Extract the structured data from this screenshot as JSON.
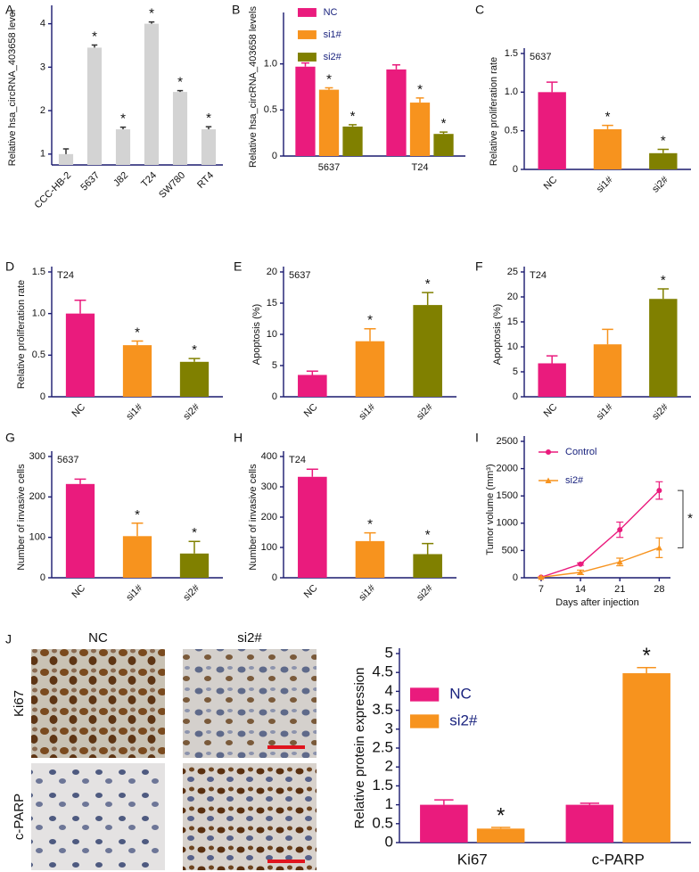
{
  "chart_data": [
    {
      "panel": "A",
      "type": "bar",
      "y_label": "Relative hsa_circRNA_403658 level",
      "categories": [
        "CCC-HB-2",
        "5637",
        "J82",
        "T24",
        "SW780",
        "RT4"
      ],
      "values": [
        1.0,
        3.45,
        1.57,
        4.0,
        2.43,
        1.57
      ],
      "errors": [
        0.12,
        0.06,
        0.05,
        0.04,
        0.03,
        0.06
      ],
      "significance": [
        null,
        "*",
        "*",
        "*",
        "*",
        "*"
      ],
      "color": "#d3d3d3",
      "ylim": [
        0.75,
        4.3
      ],
      "yticks": [
        1,
        2,
        3,
        4
      ]
    },
    {
      "panel": "B",
      "type": "bar",
      "y_label": "Relative hsa_circRNA_403658 levels",
      "categories": [
        "5637",
        "T24"
      ],
      "series": [
        {
          "name": "NC",
          "color": "#ea1b7d",
          "values": [
            0.97,
            0.94
          ],
          "errors": [
            0.04,
            0.05
          ],
          "significance": [
            null,
            null
          ]
        },
        {
          "name": "si1#",
          "color": "#f7931e",
          "values": [
            0.72,
            0.58
          ],
          "errors": [
            0.02,
            0.05
          ],
          "significance": [
            "*",
            "*"
          ]
        },
        {
          "name": "si2#",
          "color": "#808000",
          "values": [
            0.32,
            0.24
          ],
          "errors": [
            0.02,
            0.02
          ],
          "significance": [
            "*",
            "*"
          ]
        }
      ],
      "ylim": [
        0,
        1.5
      ],
      "yticks": [
        0,
        0.5,
        {
          "value": 1,
          "label": "1.0"
        }
      ]
    },
    {
      "panel": "C",
      "type": "bar",
      "subtitle": "5637",
      "y_label": "Relative proliferation rate",
      "categories": [
        "NC",
        "si1#",
        "si2#"
      ],
      "values": [
        1.0,
        0.52,
        0.21
      ],
      "errors": [
        0.13,
        0.05,
        0.05
      ],
      "significance": [
        null,
        "*",
        "*"
      ],
      "colors": [
        "#ea1b7d",
        "#f7931e",
        "#808000"
      ],
      "ylim": [
        0,
        1.5
      ],
      "yticks": [
        0,
        0.5,
        {
          "value": 1,
          "label": "1.0"
        },
        1.5
      ]
    },
    {
      "panel": "D",
      "type": "bar",
      "subtitle": "T24",
      "y_label": "Relative proliferation rate",
      "categories": [
        "NC",
        "si1#",
        "si2#"
      ],
      "values": [
        1.0,
        0.62,
        0.42
      ],
      "errors": [
        0.16,
        0.05,
        0.04
      ],
      "significance": [
        null,
        "*",
        "*"
      ],
      "colors": [
        "#ea1b7d",
        "#f7931e",
        "#808000"
      ],
      "ylim": [
        0,
        1.5
      ],
      "yticks": [
        0,
        0.5,
        {
          "value": 1,
          "label": "1.0"
        },
        1.5
      ]
    },
    {
      "panel": "E",
      "type": "bar",
      "subtitle": "5637",
      "y_label": "Apoptosis (%)",
      "categories": [
        "NC",
        "si1#",
        "si2#"
      ],
      "values": [
        3.5,
        8.9,
        14.7
      ],
      "errors": [
        0.6,
        2.0,
        2.0
      ],
      "significance": [
        null,
        "*",
        "*"
      ],
      "colors": [
        "#ea1b7d",
        "#f7931e",
        "#808000"
      ],
      "ylim": [
        0,
        20
      ],
      "yticks": [
        0,
        5,
        10,
        15,
        20
      ]
    },
    {
      "panel": "F",
      "type": "bar",
      "subtitle": "T24",
      "y_label": "Apoptosis (%)",
      "categories": [
        "NC",
        "si1#",
        "si2#"
      ],
      "values": [
        6.7,
        10.5,
        19.6
      ],
      "errors": [
        1.5,
        3.0,
        2.0
      ],
      "significance": [
        null,
        null,
        "*"
      ],
      "colors": [
        "#ea1b7d",
        "#f7931e",
        "#808000"
      ],
      "ylim": [
        0,
        25
      ],
      "yticks": [
        0,
        5,
        10,
        15,
        20,
        25
      ]
    },
    {
      "panel": "G",
      "type": "bar",
      "subtitle": "5637",
      "y_label": "Number of invasive cells",
      "categories": [
        "NC",
        "si1#",
        "si2#"
      ],
      "values": [
        232,
        103,
        60
      ],
      "errors": [
        12,
        32,
        30
      ],
      "significance": [
        null,
        "*",
        "*"
      ],
      "colors": [
        "#ea1b7d",
        "#f7931e",
        "#808000"
      ],
      "ylim": [
        0,
        300
      ],
      "yticks": [
        0,
        100,
        200,
        300
      ]
    },
    {
      "panel": "H",
      "type": "bar",
      "subtitle": "T24",
      "y_label": "Number of invasive cells",
      "categories": [
        "NC",
        "si1#",
        "si2#"
      ],
      "values": [
        333,
        121,
        78
      ],
      "errors": [
        25,
        27,
        35
      ],
      "significance": [
        null,
        "*",
        "*"
      ],
      "colors": [
        "#ea1b7d",
        "#f7931e",
        "#808000"
      ],
      "ylim": [
        0,
        400
      ],
      "yticks": [
        0,
        100,
        200,
        300,
        400
      ]
    },
    {
      "panel": "I",
      "type": "line",
      "y_label": "Tumor volume (mm³)",
      "x_label": "Days after injection",
      "x": [
        7,
        14,
        21,
        28
      ],
      "series": [
        {
          "name": "Control",
          "color": "#ea1b7d",
          "marker": "circle",
          "values": [
            10,
            250,
            880,
            1600
          ],
          "errors": [
            5,
            20,
            140,
            160
          ]
        },
        {
          "name": "si2#",
          "color": "#f7931e",
          "marker": "triangle",
          "values": [
            10,
            100,
            290,
            550
          ],
          "errors": [
            5,
            40,
            70,
            180
          ]
        }
      ],
      "significance": "*",
      "xlim": [
        4,
        30
      ],
      "xticks": [
        7,
        14,
        21,
        28
      ],
      "ylim": [
        0,
        2500
      ],
      "yticks": [
        0,
        500,
        1000,
        1500,
        2000,
        2500
      ]
    },
    {
      "panel": "J",
      "type": "bar",
      "y_label": "Relative protein expression",
      "categories": [
        "Ki67",
        "c-PARP"
      ],
      "series": [
        {
          "name": "NC",
          "color": "#ea1b7d",
          "values": [
            1.0,
            1.0
          ],
          "errors": [
            0.13,
            0.04
          ],
          "significance": [
            null,
            null
          ]
        },
        {
          "name": "si2#",
          "color": "#f7931e",
          "values": [
            0.37,
            4.48
          ],
          "errors": [
            0.03,
            0.15
          ],
          "significance": [
            "*",
            "*"
          ]
        }
      ],
      "ylim": [
        0,
        5
      ],
      "yticks": [
        0,
        0.5,
        1,
        1.5,
        2,
        2.5,
        3,
        3.5,
        4,
        4.5,
        5
      ]
    }
  ],
  "micrographs": {
    "columns": [
      "NC",
      "si2#"
    ],
    "rows": [
      "Ki67",
      "c-PARP"
    ]
  }
}
